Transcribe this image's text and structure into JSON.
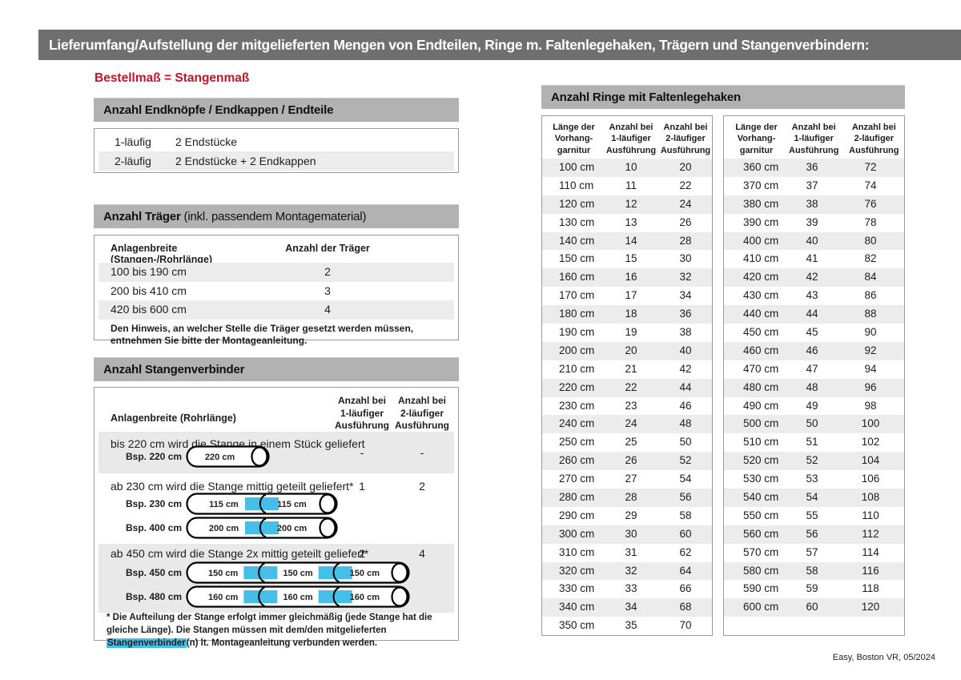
{
  "page": {
    "title": "Lieferumfang/Aufstellung der mitgelieferten Mengen von Endteilen, Ringe m. Faltenlegehaken, Trägern und Stangenverbindern:",
    "subtitle_red": "Bestellmaß = Stangenmaß",
    "footer": "Easy, Boston VR, 05/2024"
  },
  "colors": {
    "topbar_bg": "#6f6f6f",
    "section_bar_bg": "#b2b2b2",
    "row_shade": "#ececec",
    "accent_red": "#c41425",
    "highlight_cyan": "#45bfe8",
    "border_gray": "#9b9b9b"
  },
  "endteile": {
    "header": "Anzahl Endknöpfe / Endkappen / Endteile",
    "rows": [
      [
        "1-läufig",
        "2 Endstücke"
      ],
      [
        "2-läufig",
        "2 Endstücke + 2 Endkappen"
      ]
    ]
  },
  "traeger": {
    "header_bold": "Anzahl Träger",
    "header_rest": " (inkl. passendem Montagematerial)",
    "col1": "Anlagenbreite (Stangen-/Rohrlänge)",
    "col2": "Anzahl der Träger",
    "rows": [
      [
        "100 bis 190 cm",
        "2"
      ],
      [
        "200 bis 410 cm",
        "3"
      ],
      [
        "420 bis 600 cm",
        "4"
      ]
    ],
    "note": "Den Hinweis, an welcher Stelle die Träger gesetzt werden müssen, entnehmen Sie bitte der Montageanleitung."
  },
  "verbinder": {
    "header": "Anzahl Stangenverbinder",
    "col1": "Anlagenbreite (Rohrlänge)",
    "col2": "Anzahl bei\n1-läufiger\nAusführung",
    "col3": "Anzahl bei\n2-läufiger\nAusführung",
    "rows": [
      {
        "text": "bis 220 cm wird die Stange in einem Stück geliefert",
        "v1": "-",
        "v2": "-",
        "rods": [
          {
            "label": "Bsp. 220 cm",
            "segments": [
              "220 cm"
            ]
          }
        ]
      },
      {
        "text": "ab 230 cm wird die Stange mittig geteilt geliefert*",
        "v1": "1",
        "v2": "2",
        "rods": [
          {
            "label": "Bsp. 230 cm",
            "segments": [
              "115 cm",
              "115 cm"
            ]
          },
          {
            "label": "Bsp. 400 cm",
            "segments": [
              "200 cm",
              "200 cm"
            ]
          }
        ]
      },
      {
        "text": "ab 450 cm wird die Stange 2x mittig geteilt geliefert*",
        "v1": "2",
        "v2": "4",
        "rods": [
          {
            "label": "Bsp. 450 cm",
            "segments": [
              "150 cm",
              "150 cm",
              "150 cm"
            ]
          },
          {
            "label": "Bsp. 480 cm",
            "segments": [
              "160 cm",
              "160 cm",
              "160 cm"
            ]
          }
        ]
      }
    ],
    "footnote_pre": "* Die Aufteilung der Stange erfolgt immer gleichmäßig (jede Stange hat die gleiche Länge). Die Stangen müssen mit dem/den mitgelieferten ",
    "footnote_highlight": "Stangenverbinder",
    "footnote_post": "(n) lt. Montageanleitung verbunden werden."
  },
  "ringe": {
    "header": "Anzahl Ringe mit Faltenlegehaken",
    "col_len": "Länge der\nVorhang-\ngarnitur",
    "col_1": "Anzahl bei\n1-läufiger\nAusführung",
    "col_2": "Anzahl bei\n2-läufiger\nAusführung",
    "table1": {
      "rows": [
        [
          "100 cm",
          "10",
          "20"
        ],
        [
          "110 cm",
          "11",
          "22"
        ],
        [
          "120 cm",
          "12",
          "24"
        ],
        [
          "130 cm",
          "13",
          "26"
        ],
        [
          "140 cm",
          "14",
          "28"
        ],
        [
          "150 cm",
          "15",
          "30"
        ],
        [
          "160 cm",
          "16",
          "32"
        ],
        [
          "170 cm",
          "17",
          "34"
        ],
        [
          "180 cm",
          "18",
          "36"
        ],
        [
          "190 cm",
          "19",
          "38"
        ],
        [
          "200 cm",
          "20",
          "40"
        ],
        [
          "210 cm",
          "21",
          "42"
        ],
        [
          "220 cm",
          "22",
          "44"
        ],
        [
          "230 cm",
          "23",
          "46"
        ],
        [
          "240 cm",
          "24",
          "48"
        ],
        [
          "250 cm",
          "25",
          "50"
        ],
        [
          "260 cm",
          "26",
          "52"
        ],
        [
          "270 cm",
          "27",
          "54"
        ],
        [
          "280 cm",
          "28",
          "56"
        ],
        [
          "290 cm",
          "29",
          "58"
        ],
        [
          "300 cm",
          "30",
          "60"
        ],
        [
          "310 cm",
          "31",
          "62"
        ],
        [
          "320 cm",
          "32",
          "64"
        ],
        [
          "330 cm",
          "33",
          "66"
        ],
        [
          "340 cm",
          "34",
          "68"
        ],
        [
          "350 cm",
          "35",
          "70"
        ]
      ]
    },
    "table2": {
      "rows": [
        [
          "360 cm",
          "36",
          "72"
        ],
        [
          "370 cm",
          "37",
          "74"
        ],
        [
          "380 cm",
          "38",
          "76"
        ],
        [
          "390 cm",
          "39",
          "78"
        ],
        [
          "400 cm",
          "40",
          "80"
        ],
        [
          "410 cm",
          "41",
          "82"
        ],
        [
          "420 cm",
          "42",
          "84"
        ],
        [
          "430 cm",
          "43",
          "86"
        ],
        [
          "440 cm",
          "44",
          "88"
        ],
        [
          "450 cm",
          "45",
          "90"
        ],
        [
          "460 cm",
          "46",
          "92"
        ],
        [
          "470 cm",
          "47",
          "94"
        ],
        [
          "480 cm",
          "48",
          "96"
        ],
        [
          "490 cm",
          "49",
          "98"
        ],
        [
          "500 cm",
          "50",
          "100"
        ],
        [
          "510 cm",
          "51",
          "102"
        ],
        [
          "520 cm",
          "52",
          "104"
        ],
        [
          "530 cm",
          "53",
          "106"
        ],
        [
          "540 cm",
          "54",
          "108"
        ],
        [
          "550 cm",
          "55",
          "110"
        ],
        [
          "560 cm",
          "56",
          "112"
        ],
        [
          "570 cm",
          "57",
          "114"
        ],
        [
          "580 cm",
          "58",
          "116"
        ],
        [
          "590 cm",
          "59",
          "118"
        ],
        [
          "600 cm",
          "60",
          "120"
        ]
      ]
    }
  }
}
